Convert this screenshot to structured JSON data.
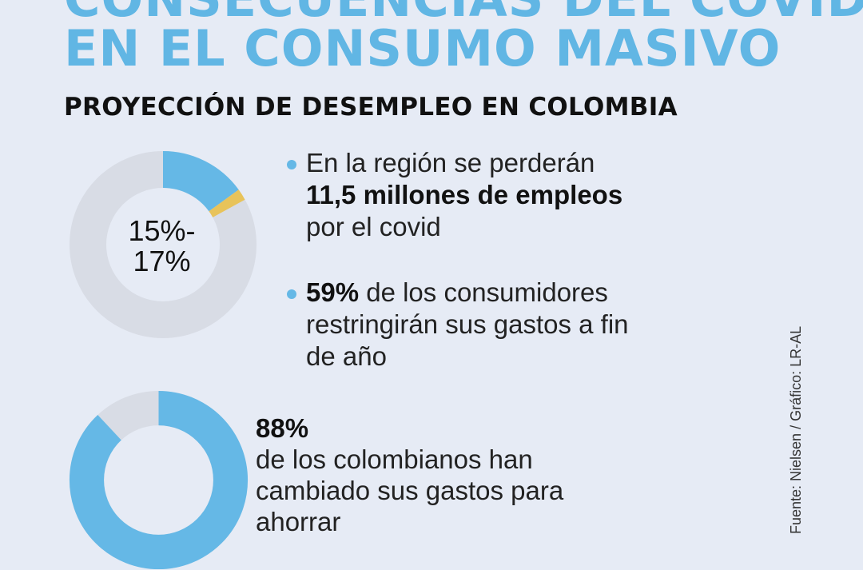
{
  "header": {
    "title_line_1": "CONSECUENCIAS DEL COVID",
    "title_line_2": "EN EL CONSUMO MASIVO",
    "subtitle": "PROYECCIÓN DE DESEMPLEO EN COLOMBIA"
  },
  "colors": {
    "background": "#e6ebf5",
    "accent_blue": "#65b8e6",
    "accent_yellow": "#e8c35a",
    "donut_track": "#d8dce5",
    "title": "#61b6e4"
  },
  "donut_unemployment": {
    "label_line_1": "15%-",
    "label_line_2": "17%",
    "blue_fraction": 0.15,
    "yellow_fraction": 0.02
  },
  "bullets": [
    {
      "line_1": "En la región se perderán",
      "line_2_bold": "11,5 millones de empleos",
      "line_3": "por el covid"
    },
    {
      "line_1_bold": "59%",
      "line_1_rest": " de los consumidores",
      "line_2": "restringirán sus gastos a fin",
      "line_3": "de año"
    }
  ],
  "donut_savings": {
    "value": "88%",
    "fraction": 0.88,
    "line_1": "de los colombianos han",
    "line_2": "cambiado sus gastos para",
    "line_3": "ahorrar"
  },
  "source": "Fuente: Nielsen / Gráfico: LR-AL"
}
